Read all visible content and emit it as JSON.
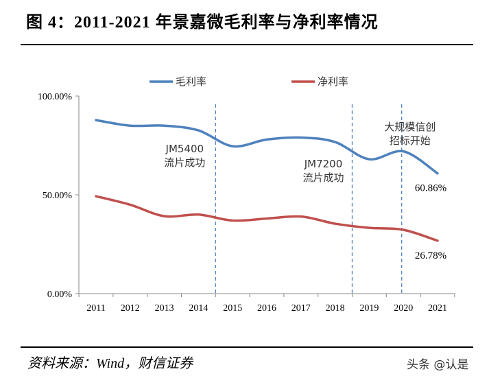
{
  "title": "图 4：2011-2021 年景嘉微毛利率与净利率情况",
  "source": "资料来源：Wind，财信证券",
  "watermark": "头条 @认是",
  "chart_data": {
    "type": "line",
    "title": "图 4：2011-2021 年景嘉微毛利率与净利率情况",
    "categories": [
      "2011",
      "2012",
      "2013",
      "2014",
      "2015",
      "2016",
      "2017",
      "2018",
      "2019",
      "2020",
      "2021"
    ],
    "ylim": [
      0,
      100
    ],
    "yticks": [
      "0.00%",
      "50.00%",
      "100.00%"
    ],
    "ytick_values": [
      0,
      50,
      100
    ],
    "legend_position": "top",
    "grid": false,
    "series": [
      {
        "name": "毛利率",
        "color": "#4F81BD",
        "values": [
          87.8,
          85.0,
          85.0,
          82.6,
          74.6,
          78.0,
          79.0,
          76.7,
          68.0,
          72.0,
          60.86
        ]
      },
      {
        "name": "净利率",
        "color": "#C0504D",
        "values": [
          49.3,
          45.0,
          39.2,
          40.0,
          37.0,
          38.0,
          39.0,
          35.4,
          33.3,
          32.3,
          26.78
        ]
      }
    ],
    "data_labels": [
      {
        "series": 0,
        "category": "2021",
        "text": "60.86%"
      },
      {
        "series": 1,
        "category": "2021",
        "text": "26.78%"
      }
    ],
    "markers": [
      {
        "x": 2014.5,
        "lines": [
          "JM5400",
          "流片成功"
        ]
      },
      {
        "x": 2018.5,
        "lines": [
          "JM7200",
          "流片成功"
        ]
      },
      {
        "x": 2019.95,
        "lines": [
          "大规模信创",
          "招标开始"
        ]
      }
    ],
    "marker_color": "#4F81BD"
  }
}
